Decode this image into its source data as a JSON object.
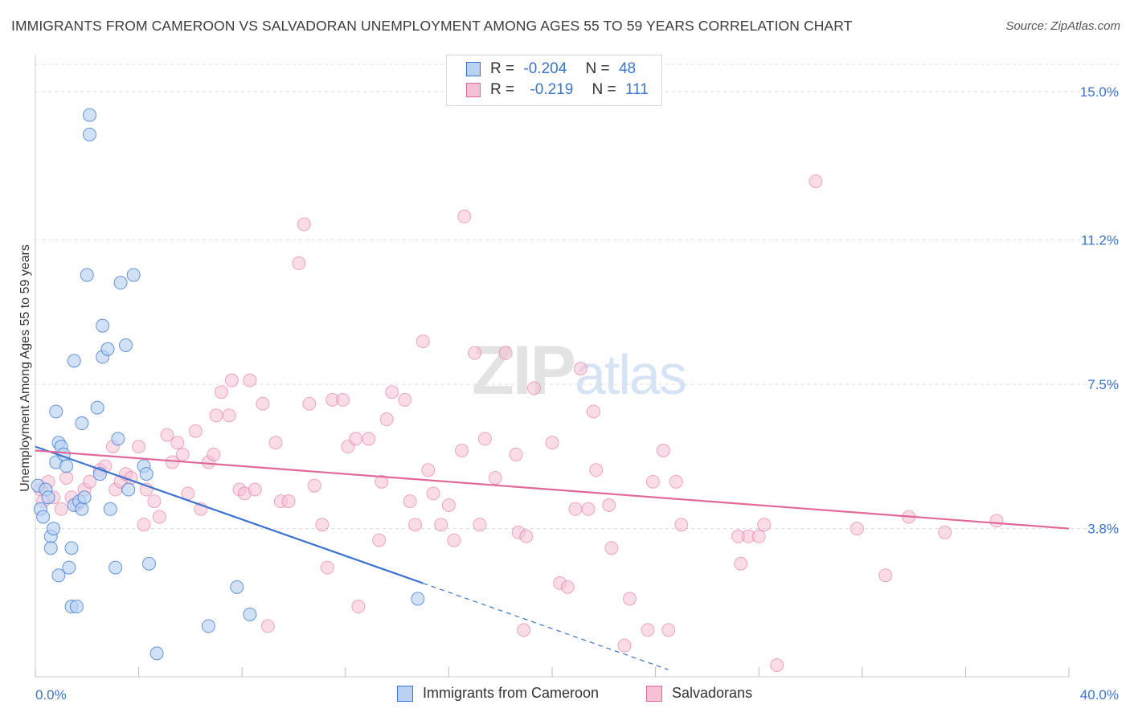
{
  "title": "IMMIGRANTS FROM CAMEROON VS SALVADORAN UNEMPLOYMENT AMONG AGES 55 TO 59 YEARS CORRELATION CHART",
  "source": "Source: ZipAtlas.com",
  "watermark": "ZIPatlas",
  "colors": {
    "blue": "#3a74d0",
    "blue_fill": "#b9d2f3",
    "pink": "#e0689a",
    "pink_fill": "#f6c0d4",
    "axis_text": "#3b74c8"
  },
  "legend": {
    "rows": [
      {
        "r_label": "R =",
        "r_value": "-0.204",
        "n_label": "N =",
        "n_value": "48"
      },
      {
        "r_label": "R =",
        "r_value": "-0.219",
        "n_label": "N =",
        "n_value": "111"
      }
    ]
  },
  "bottom_legend": {
    "blue_label": "Immigrants from Cameroon",
    "pink_label": "Salvadorans"
  },
  "chart_data": {
    "type": "scatter",
    "title": "IMMIGRANTS FROM CAMEROON VS SALVADORAN UNEMPLOYMENT AMONG AGES 55 TO 59 YEARS CORRELATION CHART",
    "xlabel": "",
    "ylabel": "Unemployment Among Ages 55 to 59 years",
    "xlim": [
      0,
      40
    ],
    "ylim": [
      0,
      15.7
    ],
    "x_tick_labels": [
      "0.0%",
      "40.0%"
    ],
    "y_ticks": [
      3.8,
      7.5,
      11.2,
      15.0
    ],
    "y_tick_labels": [
      "3.8%",
      "7.5%",
      "11.2%",
      "15.0%"
    ],
    "grid": true,
    "legend_position": "top-center",
    "series": [
      {
        "name": "Immigrants from Cameroon",
        "color": "#3a74d0",
        "R": -0.204,
        "N": 48,
        "trend": {
          "x0": 0,
          "y0": 5.9,
          "x1": 15.0,
          "y1": 2.4,
          "dashed_to_x": 24.5
        },
        "points": [
          [
            0.1,
            4.9
          ],
          [
            0.2,
            4.3
          ],
          [
            0.3,
            4.1
          ],
          [
            0.4,
            4.8
          ],
          [
            0.5,
            4.6
          ],
          [
            0.6,
            3.6
          ],
          [
            0.6,
            3.3
          ],
          [
            0.7,
            3.8
          ],
          [
            0.8,
            5.5
          ],
          [
            0.8,
            6.8
          ],
          [
            0.9,
            2.6
          ],
          [
            0.9,
            6.0
          ],
          [
            1.0,
            5.9
          ],
          [
            1.1,
            5.7
          ],
          [
            1.2,
            5.4
          ],
          [
            1.3,
            2.8
          ],
          [
            1.4,
            1.8
          ],
          [
            1.4,
            3.3
          ],
          [
            1.5,
            4.4
          ],
          [
            1.5,
            8.1
          ],
          [
            1.6,
            1.8
          ],
          [
            1.7,
            4.5
          ],
          [
            1.8,
            6.5
          ],
          [
            1.8,
            4.3
          ],
          [
            1.9,
            4.6
          ],
          [
            2.0,
            10.3
          ],
          [
            2.1,
            14.4
          ],
          [
            2.1,
            13.9
          ],
          [
            2.4,
            6.9
          ],
          [
            2.5,
            5.2
          ],
          [
            2.6,
            8.2
          ],
          [
            2.6,
            9.0
          ],
          [
            2.8,
            8.4
          ],
          [
            2.9,
            4.3
          ],
          [
            3.1,
            2.8
          ],
          [
            3.2,
            6.1
          ],
          [
            3.3,
            10.1
          ],
          [
            3.5,
            8.5
          ],
          [
            3.6,
            4.8
          ],
          [
            3.8,
            10.3
          ],
          [
            4.2,
            5.4
          ],
          [
            4.3,
            5.2
          ],
          [
            4.4,
            2.9
          ],
          [
            4.7,
            0.6
          ],
          [
            6.7,
            1.3
          ],
          [
            7.8,
            2.3
          ],
          [
            8.3,
            1.6
          ],
          [
            14.8,
            2.0
          ]
        ]
      },
      {
        "name": "Salvadorans",
        "color": "#e0689a",
        "R": -0.219,
        "N": 111,
        "trend": {
          "x0": 0,
          "y0": 5.8,
          "x1": 40,
          "y1": 3.8
        },
        "points": [
          [
            0.2,
            4.8
          ],
          [
            0.3,
            4.5
          ],
          [
            0.5,
            5.0
          ],
          [
            0.7,
            4.6
          ],
          [
            1.0,
            4.3
          ],
          [
            1.2,
            5.1
          ],
          [
            1.4,
            4.6
          ],
          [
            1.6,
            4.4
          ],
          [
            1.9,
            4.8
          ],
          [
            2.1,
            5.0
          ],
          [
            2.5,
            5.3
          ],
          [
            2.7,
            5.4
          ],
          [
            3.0,
            5.9
          ],
          [
            3.1,
            4.8
          ],
          [
            3.3,
            5.0
          ],
          [
            3.5,
            5.2
          ],
          [
            3.7,
            5.1
          ],
          [
            4.0,
            5.9
          ],
          [
            4.2,
            3.9
          ],
          [
            4.3,
            4.8
          ],
          [
            4.6,
            4.5
          ],
          [
            4.8,
            4.1
          ],
          [
            5.1,
            6.2
          ],
          [
            5.3,
            5.5
          ],
          [
            5.5,
            6.0
          ],
          [
            5.7,
            5.7
          ],
          [
            5.9,
            4.7
          ],
          [
            6.2,
            6.3
          ],
          [
            6.4,
            4.3
          ],
          [
            6.7,
            5.5
          ],
          [
            6.9,
            5.7
          ],
          [
            7.0,
            6.7
          ],
          [
            7.2,
            7.3
          ],
          [
            7.5,
            6.7
          ],
          [
            7.6,
            7.6
          ],
          [
            7.9,
            4.8
          ],
          [
            8.1,
            4.7
          ],
          [
            8.3,
            7.6
          ],
          [
            8.5,
            4.8
          ],
          [
            8.8,
            7.0
          ],
          [
            9.0,
            1.3
          ],
          [
            9.3,
            6.0
          ],
          [
            9.5,
            4.5
          ],
          [
            9.8,
            4.5
          ],
          [
            10.2,
            10.6
          ],
          [
            10.4,
            11.6
          ],
          [
            10.6,
            7.0
          ],
          [
            10.8,
            4.9
          ],
          [
            11.1,
            3.9
          ],
          [
            11.3,
            2.8
          ],
          [
            11.5,
            7.1
          ],
          [
            11.9,
            7.1
          ],
          [
            12.1,
            5.9
          ],
          [
            12.4,
            6.1
          ],
          [
            12.5,
            1.8
          ],
          [
            12.9,
            6.1
          ],
          [
            13.3,
            3.5
          ],
          [
            13.4,
            5.0
          ],
          [
            13.6,
            6.6
          ],
          [
            13.8,
            7.3
          ],
          [
            14.3,
            7.1
          ],
          [
            14.5,
            4.5
          ],
          [
            14.7,
            3.9
          ],
          [
            15.0,
            8.6
          ],
          [
            15.2,
            5.3
          ],
          [
            15.4,
            4.7
          ],
          [
            15.7,
            3.9
          ],
          [
            16.0,
            4.4
          ],
          [
            16.2,
            3.5
          ],
          [
            16.5,
            5.8
          ],
          [
            16.6,
            11.8
          ],
          [
            17.0,
            8.3
          ],
          [
            17.2,
            3.9
          ],
          [
            17.4,
            6.1
          ],
          [
            17.8,
            5.1
          ],
          [
            18.2,
            8.3
          ],
          [
            18.6,
            5.7
          ],
          [
            18.7,
            3.7
          ],
          [
            18.9,
            1.2
          ],
          [
            19.0,
            3.6
          ],
          [
            19.3,
            7.4
          ],
          [
            20.0,
            6.0
          ],
          [
            20.3,
            2.4
          ],
          [
            20.6,
            2.3
          ],
          [
            20.9,
            4.3
          ],
          [
            21.1,
            7.9
          ],
          [
            21.4,
            4.3
          ],
          [
            21.6,
            6.8
          ],
          [
            21.7,
            5.3
          ],
          [
            22.2,
            4.4
          ],
          [
            22.3,
            3.3
          ],
          [
            22.8,
            0.8
          ],
          [
            23.0,
            2.0
          ],
          [
            23.7,
            1.2
          ],
          [
            23.9,
            5.0
          ],
          [
            24.3,
            5.8
          ],
          [
            24.5,
            1.2
          ],
          [
            24.8,
            5.0
          ],
          [
            25.0,
            3.9
          ],
          [
            27.2,
            3.6
          ],
          [
            27.3,
            2.9
          ],
          [
            27.6,
            3.6
          ],
          [
            28.0,
            3.6
          ],
          [
            28.2,
            3.9
          ],
          [
            28.7,
            0.3
          ],
          [
            30.2,
            12.7
          ],
          [
            31.8,
            3.8
          ],
          [
            32.9,
            2.6
          ],
          [
            33.8,
            4.1
          ],
          [
            35.2,
            3.7
          ],
          [
            37.2,
            4.0
          ]
        ]
      }
    ]
  }
}
